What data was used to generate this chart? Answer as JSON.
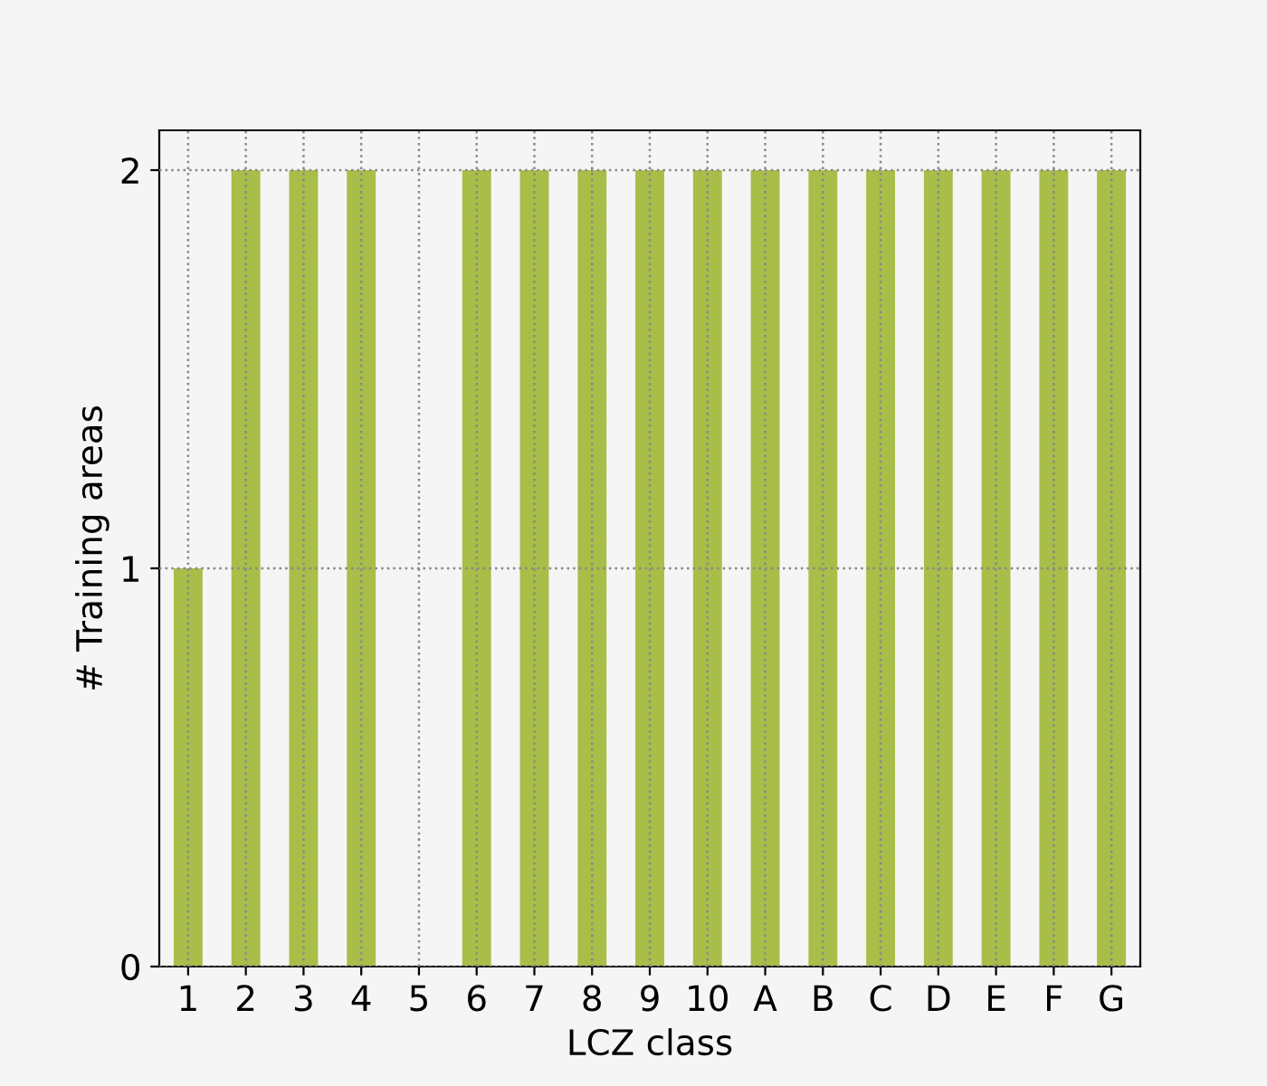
{
  "chart_data": {
    "type": "bar",
    "categories": [
      "1",
      "2",
      "3",
      "4",
      "5",
      "6",
      "7",
      "8",
      "9",
      "10",
      "A",
      "B",
      "C",
      "D",
      "E",
      "F",
      "G"
    ],
    "values": [
      1,
      2,
      2,
      2,
      0,
      2,
      2,
      2,
      2,
      2,
      2,
      2,
      2,
      2,
      2,
      2,
      2
    ],
    "color": "#a8be48",
    "xlabel": "LCZ class",
    "ylabel": "# Training areas",
    "ylim": [
      0,
      2.1
    ],
    "yticks": [
      0,
      1,
      2
    ],
    "grid": true,
    "legend": false
  }
}
